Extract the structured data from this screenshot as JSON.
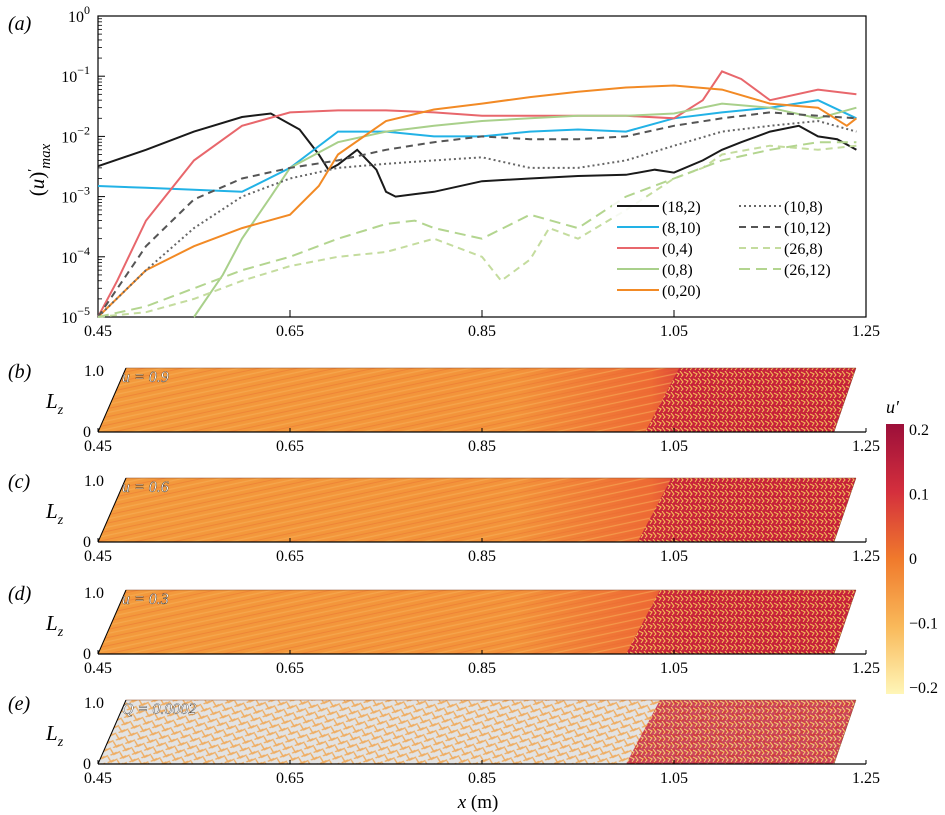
{
  "panel_labels": {
    "a": "(a)",
    "b": "(b)",
    "c": "(c)",
    "d": "(d)",
    "e": "(e)"
  },
  "x_axis_label": "x (m)",
  "panel_b_annotation": "u = 0.9",
  "panel_c_annotation": "u = 0.6",
  "panel_d_annotation": "u = 0.3",
  "panel_e_annotation": "Q = 0.0002",
  "lz_label": "L",
  "lz_sub": "z",
  "lz_ticks": [
    "1.0",
    "0"
  ],
  "colorbar": {
    "title": "u′",
    "ticks": [
      "0.2",
      "0.1",
      "0",
      "−0.1",
      "−0.2"
    ],
    "colors": [
      "#9c0f3a",
      "#d42f3d",
      "#f07a2c",
      "#f9b95a",
      "#fff6b8"
    ]
  },
  "chart_data": {
    "type": "line",
    "ylabel": "(u)′max",
    "xlabel": "x (m)",
    "xlim": [
      0.45,
      1.25
    ],
    "ylim": [
      1e-05,
      1
    ],
    "yscale": "log",
    "x_ticks": [
      "0.45",
      "0.65",
      "0.85",
      "1.05",
      "1.25"
    ],
    "y_ticks": [
      {
        "base": "10",
        "exp": "0",
        "value": 1
      },
      {
        "base": "10",
        "exp": "−1",
        "value": 0.1
      },
      {
        "base": "10",
        "exp": "−2",
        "value": 0.01
      },
      {
        "base": "10",
        "exp": "−3",
        "value": 0.001
      },
      {
        "base": "10",
        "exp": "−4",
        "value": 0.0001
      },
      {
        "base": "10",
        "exp": "−5",
        "value": 1e-05
      }
    ],
    "legend_position": "lower-right",
    "series": [
      {
        "name": "(18,2)",
        "color": "#1a1a1a",
        "dash": "solid",
        "x": [
          0.45,
          0.5,
          0.55,
          0.6,
          0.63,
          0.66,
          0.68,
          0.69,
          0.7,
          0.72,
          0.74,
          0.75,
          0.76,
          0.78,
          0.8,
          0.85,
          0.9,
          0.95,
          1.0,
          1.03,
          1.05,
          1.08,
          1.1,
          1.12,
          1.15,
          1.18,
          1.2,
          1.22,
          1.24
        ],
        "y": [
          0.0032,
          0.006,
          0.012,
          0.021,
          0.024,
          0.013,
          0.005,
          0.0028,
          0.0034,
          0.006,
          0.0028,
          0.0012,
          0.001,
          0.0011,
          0.0012,
          0.0018,
          0.002,
          0.0022,
          0.0023,
          0.0028,
          0.0025,
          0.004,
          0.006,
          0.008,
          0.012,
          0.015,
          0.01,
          0.009,
          0.006
        ]
      },
      {
        "name": "(8,10)",
        "color": "#22b2e6",
        "dash": "solid",
        "x": [
          0.45,
          0.5,
          0.55,
          0.6,
          0.65,
          0.7,
          0.75,
          0.8,
          0.85,
          0.9,
          0.95,
          1.0,
          1.05,
          1.1,
          1.15,
          1.2,
          1.24
        ],
        "y": [
          0.0015,
          0.0014,
          0.0013,
          0.0012,
          0.003,
          0.012,
          0.012,
          0.01,
          0.01,
          0.012,
          0.013,
          0.012,
          0.02,
          0.025,
          0.03,
          0.04,
          0.02
        ]
      },
      {
        "name": "(0,4)",
        "color": "#e8676c",
        "dash": "solid",
        "x": [
          0.45,
          0.47,
          0.5,
          0.55,
          0.6,
          0.65,
          0.7,
          0.75,
          0.8,
          0.85,
          0.9,
          0.95,
          1.0,
          1.05,
          1.08,
          1.1,
          1.12,
          1.15,
          1.2,
          1.24
        ],
        "y": [
          1e-05,
          4e-05,
          0.0004,
          0.004,
          0.015,
          0.025,
          0.027,
          0.027,
          0.025,
          0.022,
          0.022,
          0.022,
          0.022,
          0.02,
          0.04,
          0.12,
          0.09,
          0.04,
          0.06,
          0.05
        ]
      },
      {
        "name": "(0,8)",
        "color": "#a9d08b",
        "dash": "solid",
        "x": [
          0.55,
          0.58,
          0.6,
          0.63,
          0.65,
          0.7,
          0.75,
          0.8,
          0.85,
          0.9,
          0.95,
          1.0,
          1.05,
          1.1,
          1.15,
          1.2,
          1.24
        ],
        "y": [
          1e-05,
          5e-05,
          0.0002,
          0.001,
          0.003,
          0.008,
          0.012,
          0.015,
          0.018,
          0.02,
          0.022,
          0.022,
          0.024,
          0.035,
          0.03,
          0.02,
          0.03
        ]
      },
      {
        "name": "(0,20)",
        "color": "#f28a25",
        "dash": "solid",
        "x": [
          0.45,
          0.5,
          0.55,
          0.6,
          0.65,
          0.68,
          0.7,
          0.75,
          0.8,
          0.85,
          0.9,
          0.95,
          1.0,
          1.05,
          1.1,
          1.15,
          1.2,
          1.23,
          1.24
        ],
        "y": [
          8e-06,
          6e-05,
          0.00015,
          0.0003,
          0.0005,
          0.0015,
          0.005,
          0.018,
          0.028,
          0.035,
          0.045,
          0.055,
          0.065,
          0.07,
          0.06,
          0.035,
          0.03,
          0.015,
          0.02
        ]
      },
      {
        "name": "(10,8)",
        "color": "#666666",
        "dash": "dot",
        "x": [
          0.45,
          0.5,
          0.55,
          0.6,
          0.65,
          0.7,
          0.75,
          0.8,
          0.85,
          0.9,
          0.95,
          1.0,
          1.05,
          1.1,
          1.15,
          1.2,
          1.24
        ],
        "y": [
          8e-06,
          6e-05,
          0.0003,
          0.001,
          0.002,
          0.003,
          0.0035,
          0.004,
          0.0045,
          0.003,
          0.003,
          0.004,
          0.007,
          0.012,
          0.015,
          0.018,
          0.012
        ]
      },
      {
        "name": "(10,12)",
        "color": "#555555",
        "dash": "dash",
        "x": [
          0.45,
          0.5,
          0.55,
          0.6,
          0.65,
          0.7,
          0.75,
          0.8,
          0.85,
          0.9,
          0.95,
          1.0,
          1.05,
          1.1,
          1.15,
          1.2,
          1.24
        ],
        "y": [
          1e-05,
          0.00015,
          0.0009,
          0.002,
          0.003,
          0.004,
          0.006,
          0.008,
          0.01,
          0.009,
          0.009,
          0.01,
          0.015,
          0.02,
          0.025,
          0.022,
          0.02
        ]
      },
      {
        "name": "(26,8)",
        "color": "#c4dc9e",
        "dash": "dash",
        "x": [
          0.45,
          0.5,
          0.55,
          0.6,
          0.65,
          0.7,
          0.75,
          0.8,
          0.85,
          0.87,
          0.9,
          0.92,
          0.95,
          1.0,
          1.05,
          1.08,
          1.1,
          1.15,
          1.2,
          1.24
        ],
        "y": [
          1e-05,
          1.2e-05,
          2e-05,
          4e-05,
          7e-05,
          0.0001,
          0.00012,
          0.0002,
          0.0001,
          4e-05,
          9e-05,
          0.0003,
          0.0002,
          0.0006,
          0.002,
          0.003,
          0.005,
          0.007,
          0.006,
          0.007
        ]
      },
      {
        "name": "(26,12)",
        "color": "#b3d58f",
        "dash": "longdash",
        "x": [
          0.45,
          0.5,
          0.55,
          0.6,
          0.65,
          0.7,
          0.75,
          0.78,
          0.8,
          0.85,
          0.9,
          0.95,
          1.0,
          1.05,
          1.1,
          1.15,
          1.2,
          1.24
        ],
        "y": [
          1e-05,
          1.5e-05,
          3e-05,
          6e-05,
          0.0001,
          0.0002,
          0.00035,
          0.0004,
          0.0003,
          0.0002,
          0.0005,
          0.0003,
          0.001,
          0.002,
          0.004,
          0.006,
          0.008,
          0.008
        ]
      }
    ]
  }
}
